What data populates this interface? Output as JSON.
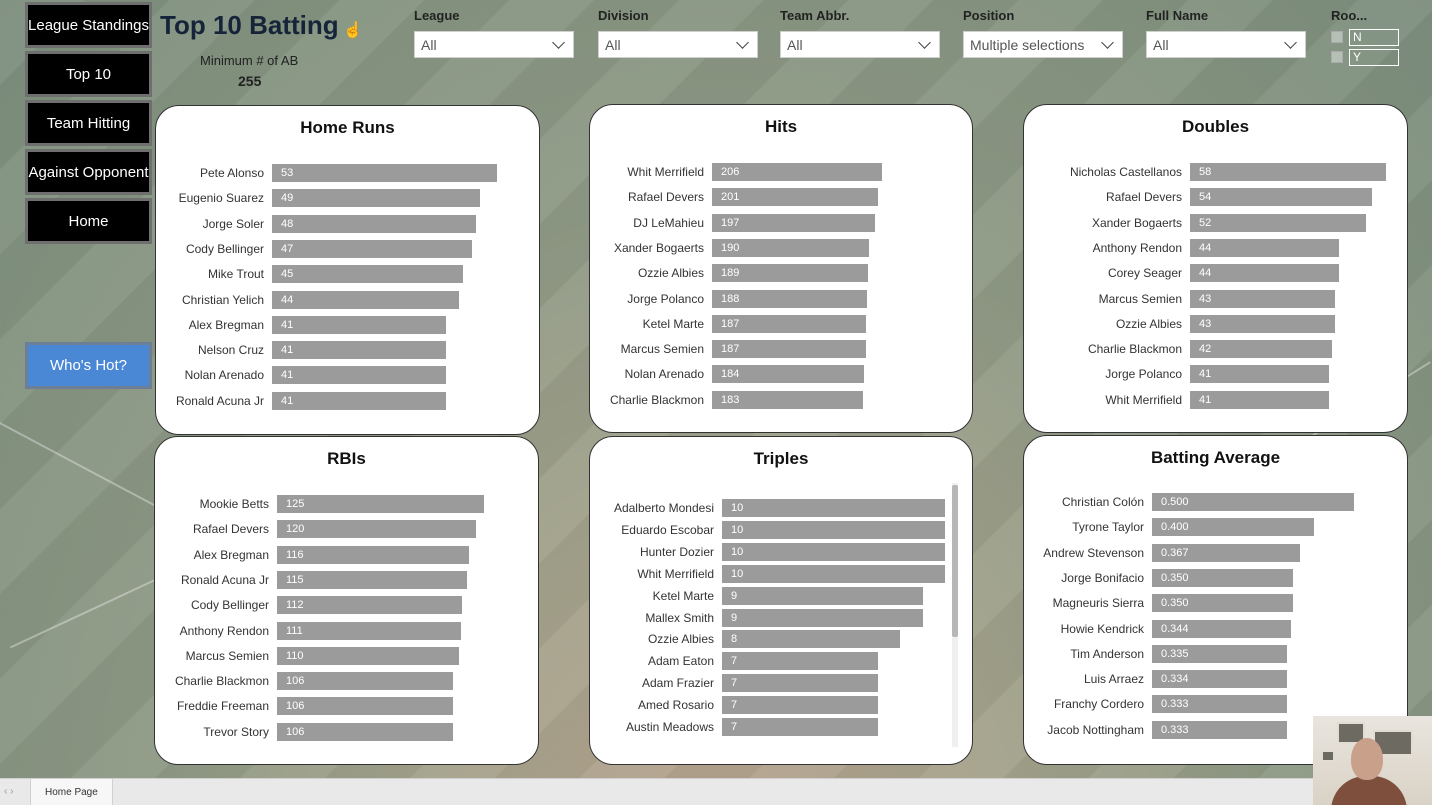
{
  "nav": {
    "league_standings": "League Standings",
    "top10": "Top 10",
    "team_hitting": "Team Hitting",
    "against_opponent": "Against Opponent",
    "home": "Home",
    "whos_hot": "Who's Hot?"
  },
  "header": {
    "title": "Top 10 Batting",
    "min_ab_label": "Minimum # of AB",
    "min_ab_value": "255"
  },
  "filters": [
    {
      "label": "League",
      "value": "All"
    },
    {
      "label": "Division",
      "value": "All"
    },
    {
      "label": "Team Abbr.",
      "value": "All"
    },
    {
      "label": "Position",
      "value": "Multiple selections"
    },
    {
      "label": "Full Name",
      "value": "All"
    }
  ],
  "rookie": {
    "label": "Roo...",
    "options": [
      "N",
      "Y"
    ]
  },
  "colors": {
    "bar": "#9b9b9b",
    "nav_bg": "#000000",
    "hot_button": "#4a88d6",
    "title": "#16243a"
  },
  "charts": {
    "home_runs": {
      "title": "Home Runs",
      "max": 53,
      "rows": [
        {
          "name": "Pete Alonso",
          "label": "53",
          "value": 53
        },
        {
          "name": "Eugenio Suarez",
          "label": "49",
          "value": 49
        },
        {
          "name": "Jorge Soler",
          "label": "48",
          "value": 48
        },
        {
          "name": "Cody Bellinger",
          "label": "47",
          "value": 47
        },
        {
          "name": "Mike Trout",
          "label": "45",
          "value": 45
        },
        {
          "name": "Christian Yelich",
          "label": "44",
          "value": 44
        },
        {
          "name": "Alex Bregman",
          "label": "41",
          "value": 41
        },
        {
          "name": "Nelson Cruz",
          "label": "41",
          "value": 41
        },
        {
          "name": "Nolan Arenado",
          "label": "41",
          "value": 41
        },
        {
          "name": "Ronald Acuna Jr",
          "label": "41",
          "value": 41
        }
      ]
    },
    "hits": {
      "title": "Hits",
      "max": 206,
      "rows": [
        {
          "name": "Whit Merrifield",
          "label": "206",
          "value": 206
        },
        {
          "name": "Rafael Devers",
          "label": "201",
          "value": 201
        },
        {
          "name": "DJ LeMahieu",
          "label": "197",
          "value": 197
        },
        {
          "name": "Xander Bogaerts",
          "label": "190",
          "value": 190
        },
        {
          "name": "Ozzie Albies",
          "label": "189",
          "value": 189
        },
        {
          "name": "Jorge Polanco",
          "label": "188",
          "value": 188
        },
        {
          "name": "Ketel Marte",
          "label": "187",
          "value": 187
        },
        {
          "name": "Marcus Semien",
          "label": "187",
          "value": 187
        },
        {
          "name": "Nolan Arenado",
          "label": "184",
          "value": 184
        },
        {
          "name": "Charlie Blackmon",
          "label": "183",
          "value": 183
        }
      ]
    },
    "doubles": {
      "title": "Doubles",
      "max": 58,
      "rows": [
        {
          "name": "Nicholas Castellanos",
          "label": "58",
          "value": 58
        },
        {
          "name": "Rafael Devers",
          "label": "54",
          "value": 54
        },
        {
          "name": "Xander Bogaerts",
          "label": "52",
          "value": 52
        },
        {
          "name": "Anthony Rendon",
          "label": "44",
          "value": 44
        },
        {
          "name": "Corey Seager",
          "label": "44",
          "value": 44
        },
        {
          "name": "Marcus Semien",
          "label": "43",
          "value": 43
        },
        {
          "name": "Ozzie Albies",
          "label": "43",
          "value": 43
        },
        {
          "name": "Charlie Blackmon",
          "label": "42",
          "value": 42
        },
        {
          "name": "Jorge Polanco",
          "label": "41",
          "value": 41
        },
        {
          "name": "Whit Merrifield",
          "label": "41",
          "value": 41
        }
      ]
    },
    "rbis": {
      "title": "RBIs",
      "max": 125,
      "rows": [
        {
          "name": "Mookie Betts",
          "label": "125",
          "value": 125
        },
        {
          "name": "Rafael Devers",
          "label": "120",
          "value": 120
        },
        {
          "name": "Alex Bregman",
          "label": "116",
          "value": 116
        },
        {
          "name": "Ronald Acuna Jr",
          "label": "115",
          "value": 115
        },
        {
          "name": "Cody Bellinger",
          "label": "112",
          "value": 112
        },
        {
          "name": "Anthony Rendon",
          "label": "111",
          "value": 111
        },
        {
          "name": "Marcus Semien",
          "label": "110",
          "value": 110
        },
        {
          "name": "Charlie Blackmon",
          "label": "106",
          "value": 106
        },
        {
          "name": "Freddie Freeman",
          "label": "106",
          "value": 106
        },
        {
          "name": "Trevor Story",
          "label": "106",
          "value": 106
        }
      ]
    },
    "triples": {
      "title": "Triples",
      "max": 10,
      "rows": [
        {
          "name": "Adalberto Mondesi",
          "label": "10",
          "value": 10
        },
        {
          "name": "Eduardo Escobar",
          "label": "10",
          "value": 10
        },
        {
          "name": "Hunter Dozier",
          "label": "10",
          "value": 10
        },
        {
          "name": "Whit Merrifield",
          "label": "10",
          "value": 10
        },
        {
          "name": "Ketel Marte",
          "label": "9",
          "value": 9
        },
        {
          "name": "Mallex Smith",
          "label": "9",
          "value": 9
        },
        {
          "name": "Ozzie Albies",
          "label": "8",
          "value": 8
        },
        {
          "name": "Adam Eaton",
          "label": "7",
          "value": 7
        },
        {
          "name": "Adam Frazier",
          "label": "7",
          "value": 7
        },
        {
          "name": "Amed Rosario",
          "label": "7",
          "value": 7
        },
        {
          "name": "Austin Meadows",
          "label": "7",
          "value": 7
        }
      ]
    },
    "batting_average": {
      "title": "Batting Average",
      "max": 0.5,
      "rows": [
        {
          "name": "Christian Colón",
          "label": "0.500",
          "value": 0.5
        },
        {
          "name": "Tyrone Taylor",
          "label": "0.400",
          "value": 0.4
        },
        {
          "name": "Andrew Stevenson",
          "label": "0.367",
          "value": 0.367
        },
        {
          "name": "Jorge Bonifacio",
          "label": "0.350",
          "value": 0.35
        },
        {
          "name": "Magneuris Sierra",
          "label": "0.350",
          "value": 0.35
        },
        {
          "name": "Howie Kendrick",
          "label": "0.344",
          "value": 0.344
        },
        {
          "name": "Tim Anderson",
          "label": "0.335",
          "value": 0.335
        },
        {
          "name": "Luis Arraez",
          "label": "0.334",
          "value": 0.334
        },
        {
          "name": "Franchy Cordero",
          "label": "0.333",
          "value": 0.333
        },
        {
          "name": "Jacob Nottingham",
          "label": "0.333",
          "value": 0.333
        }
      ]
    }
  },
  "tabs": {
    "active": "Home Page"
  }
}
